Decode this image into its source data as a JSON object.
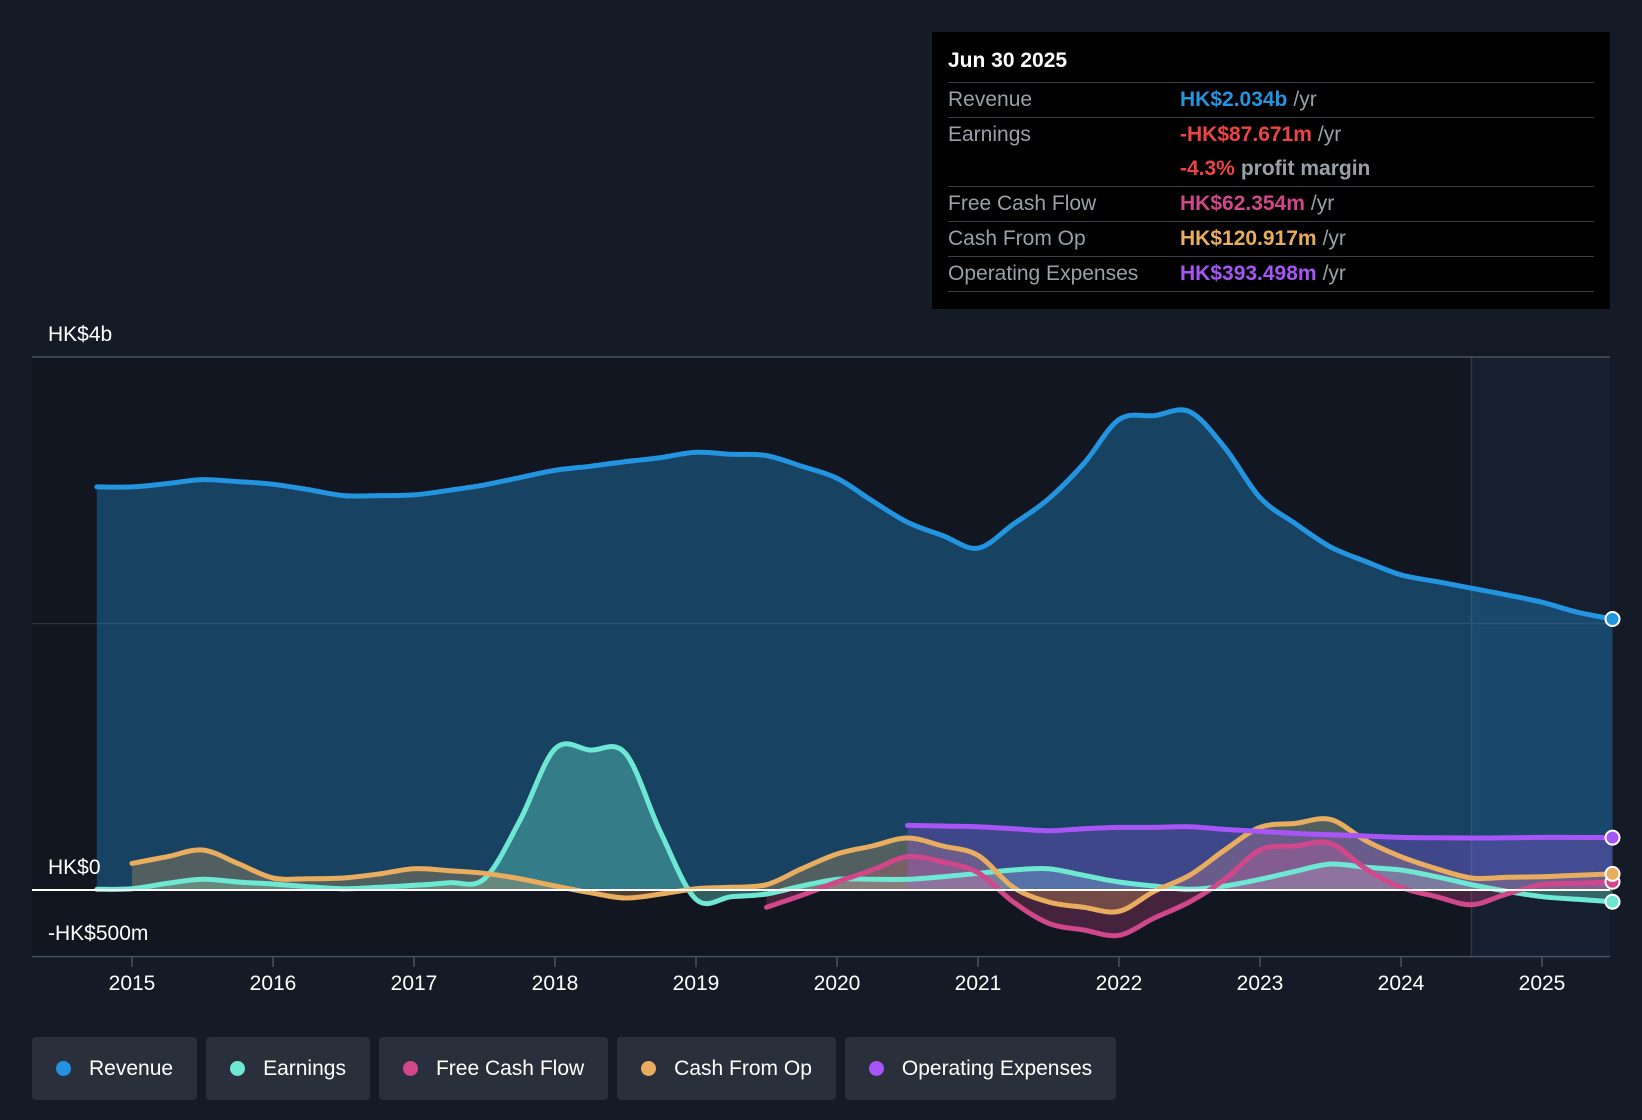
{
  "colors": {
    "revenue": "#2394df",
    "earnings": "#6ee7d3",
    "fcf": "#d0478a",
    "cfo": "#e9ad5f",
    "opex": "#a855f7"
  },
  "tooltip": {
    "date": "Jun 30 2025",
    "rows": [
      {
        "label": "Revenue",
        "value": "HK$2.034b",
        "unit": "/yr"
      },
      {
        "label": "Earnings",
        "value": "-HK$87.671m",
        "unit": "/yr"
      },
      {
        "label": "",
        "value": "-4.3%",
        "unit": "profit margin"
      },
      {
        "label": "Free Cash Flow",
        "value": "HK$62.354m",
        "unit": "/yr"
      },
      {
        "label": "Cash From Op",
        "value": "HK$120.917m",
        "unit": "/yr"
      },
      {
        "label": "Operating Expenses",
        "value": "HK$393.498m",
        "unit": "/yr"
      }
    ]
  },
  "legend": [
    {
      "label": "Revenue",
      "color": "#2394df"
    },
    {
      "label": "Earnings",
      "color": "#6ee7d3"
    },
    {
      "label": "Free Cash Flow",
      "color": "#d0478a"
    },
    {
      "label": "Cash From Op",
      "color": "#e9ad5f"
    },
    {
      "label": "Operating Expenses",
      "color": "#a855f7"
    }
  ],
  "chart_data": {
    "type": "area",
    "title": "",
    "y_tick_labels": [
      "HK$4b",
      "HK$0",
      "-HK$500m"
    ],
    "ylim_millions": [
      -500,
      4000
    ],
    "xlim_years": [
      2014.3,
      2025.5
    ],
    "forecast_band_start": 2024.5,
    "x_ticks": [
      "2015",
      "2016",
      "2017",
      "2018",
      "2019",
      "2020",
      "2021",
      "2022",
      "2023",
      "2024",
      "2025"
    ],
    "series": [
      {
        "name": "Revenue",
        "key": "revenue",
        "fill": true,
        "points": [
          [
            2014.75,
            3025
          ],
          [
            2015.0,
            3025
          ],
          [
            2015.25,
            3050
          ],
          [
            2015.5,
            3080
          ],
          [
            2015.75,
            3065
          ],
          [
            2016.0,
            3045
          ],
          [
            2016.25,
            3005
          ],
          [
            2016.5,
            2960
          ],
          [
            2016.75,
            2960
          ],
          [
            2017.0,
            2965
          ],
          [
            2017.25,
            3000
          ],
          [
            2017.5,
            3040
          ],
          [
            2017.75,
            3095
          ],
          [
            2018.0,
            3150
          ],
          [
            2018.25,
            3180
          ],
          [
            2018.5,
            3215
          ],
          [
            2018.75,
            3245
          ],
          [
            2019.0,
            3285
          ],
          [
            2019.25,
            3270
          ],
          [
            2019.5,
            3260
          ],
          [
            2019.75,
            3180
          ],
          [
            2020.0,
            3090
          ],
          [
            2020.25,
            2920
          ],
          [
            2020.5,
            2760
          ],
          [
            2020.75,
            2660
          ],
          [
            2021.0,
            2565
          ],
          [
            2021.25,
            2745
          ],
          [
            2021.5,
            2935
          ],
          [
            2021.75,
            3200
          ],
          [
            2022.0,
            3530
          ],
          [
            2022.25,
            3560
          ],
          [
            2022.5,
            3590
          ],
          [
            2022.75,
            3320
          ],
          [
            2023.0,
            2945
          ],
          [
            2023.25,
            2750
          ],
          [
            2023.5,
            2575
          ],
          [
            2023.75,
            2465
          ],
          [
            2024.0,
            2365
          ],
          [
            2024.25,
            2315
          ],
          [
            2024.5,
            2265
          ],
          [
            2024.75,
            2215
          ],
          [
            2025.0,
            2160
          ],
          [
            2025.25,
            2085
          ],
          [
            2025.5,
            2034
          ]
        ]
      },
      {
        "name": "Earnings",
        "key": "earnings",
        "fill": true,
        "points": [
          [
            2014.75,
            5
          ],
          [
            2015.0,
            10
          ],
          [
            2015.25,
            50
          ],
          [
            2015.5,
            80
          ],
          [
            2015.75,
            60
          ],
          [
            2016.0,
            45
          ],
          [
            2016.25,
            25
          ],
          [
            2016.5,
            10
          ],
          [
            2016.75,
            20
          ],
          [
            2017.0,
            35
          ],
          [
            2017.25,
            55
          ],
          [
            2017.5,
            85
          ],
          [
            2017.75,
            520
          ],
          [
            2018.0,
            1060
          ],
          [
            2018.25,
            1050
          ],
          [
            2018.5,
            1025
          ],
          [
            2018.75,
            430
          ],
          [
            2019.0,
            -70
          ],
          [
            2019.25,
            -50
          ],
          [
            2019.5,
            -30
          ],
          [
            2019.75,
            30
          ],
          [
            2020.0,
            80
          ],
          [
            2020.25,
            80
          ],
          [
            2020.5,
            80
          ],
          [
            2020.75,
            100
          ],
          [
            2021.0,
            125
          ],
          [
            2021.25,
            150
          ],
          [
            2021.5,
            160
          ],
          [
            2021.75,
            110
          ],
          [
            2022.0,
            60
          ],
          [
            2022.25,
            30
          ],
          [
            2022.5,
            5
          ],
          [
            2022.75,
            30
          ],
          [
            2023.0,
            80
          ],
          [
            2023.25,
            140
          ],
          [
            2023.5,
            195
          ],
          [
            2023.75,
            170
          ],
          [
            2024.0,
            150
          ],
          [
            2024.25,
            100
          ],
          [
            2024.5,
            40
          ],
          [
            2024.75,
            -10
          ],
          [
            2025.0,
            -50
          ],
          [
            2025.25,
            -70
          ],
          [
            2025.5,
            -88
          ]
        ]
      },
      {
        "name": "Free Cash Flow",
        "key": "fcf",
        "fill": true,
        "points": [
          [
            2019.5,
            -130
          ],
          [
            2019.75,
            -40
          ],
          [
            2020.0,
            60
          ],
          [
            2020.25,
            150
          ],
          [
            2020.5,
            250
          ],
          [
            2020.75,
            210
          ],
          [
            2021.0,
            130
          ],
          [
            2021.25,
            -90
          ],
          [
            2021.5,
            -250
          ],
          [
            2021.75,
            -300
          ],
          [
            2022.0,
            -340
          ],
          [
            2022.25,
            -210
          ],
          [
            2022.5,
            -90
          ],
          [
            2022.75,
            80
          ],
          [
            2023.0,
            300
          ],
          [
            2023.25,
            330
          ],
          [
            2023.5,
            350
          ],
          [
            2023.75,
            160
          ],
          [
            2024.0,
            20
          ],
          [
            2024.25,
            -50
          ],
          [
            2024.5,
            -110
          ],
          [
            2024.75,
            -30
          ],
          [
            2025.0,
            40
          ],
          [
            2025.25,
            50
          ],
          [
            2025.5,
            62
          ]
        ]
      },
      {
        "name": "Cash From Op",
        "key": "cfo",
        "fill": true,
        "points": [
          [
            2015.0,
            200
          ],
          [
            2015.25,
            250
          ],
          [
            2015.5,
            300
          ],
          [
            2015.75,
            200
          ],
          [
            2016.0,
            90
          ],
          [
            2016.25,
            85
          ],
          [
            2016.5,
            90
          ],
          [
            2016.75,
            120
          ],
          [
            2017.0,
            160
          ],
          [
            2017.25,
            145
          ],
          [
            2017.5,
            125
          ],
          [
            2017.75,
            85
          ],
          [
            2018.0,
            30
          ],
          [
            2018.25,
            -20
          ],
          [
            2018.5,
            -60
          ],
          [
            2018.75,
            -30
          ],
          [
            2019.0,
            10
          ],
          [
            2019.25,
            20
          ],
          [
            2019.5,
            40
          ],
          [
            2019.75,
            160
          ],
          [
            2020.0,
            270
          ],
          [
            2020.25,
            330
          ],
          [
            2020.5,
            390
          ],
          [
            2020.75,
            330
          ],
          [
            2021.0,
            260
          ],
          [
            2021.25,
            20
          ],
          [
            2021.5,
            -90
          ],
          [
            2021.75,
            -130
          ],
          [
            2022.0,
            -160
          ],
          [
            2022.25,
            -10
          ],
          [
            2022.5,
            110
          ],
          [
            2022.75,
            300
          ],
          [
            2023.0,
            470
          ],
          [
            2023.25,
            500
          ],
          [
            2023.5,
            530
          ],
          [
            2023.75,
            370
          ],
          [
            2024.0,
            250
          ],
          [
            2024.25,
            160
          ],
          [
            2024.5,
            90
          ],
          [
            2024.75,
            95
          ],
          [
            2025.0,
            100
          ],
          [
            2025.25,
            110
          ],
          [
            2025.5,
            121
          ]
        ]
      },
      {
        "name": "Operating Expenses",
        "key": "opex",
        "fill": true,
        "points": [
          [
            2020.5,
            485
          ],
          [
            2020.75,
            480
          ],
          [
            2021.0,
            475
          ],
          [
            2021.25,
            460
          ],
          [
            2021.5,
            445
          ],
          [
            2021.75,
            460
          ],
          [
            2022.0,
            470
          ],
          [
            2022.25,
            470
          ],
          [
            2022.5,
            475
          ],
          [
            2022.75,
            455
          ],
          [
            2023.0,
            440
          ],
          [
            2023.25,
            425
          ],
          [
            2023.5,
            415
          ],
          [
            2023.75,
            405
          ],
          [
            2024.0,
            395
          ],
          [
            2024.25,
            392
          ],
          [
            2024.5,
            390
          ],
          [
            2024.75,
            392
          ],
          [
            2025.0,
            395
          ],
          [
            2025.25,
            394
          ],
          [
            2025.5,
            393
          ]
        ]
      }
    ]
  }
}
